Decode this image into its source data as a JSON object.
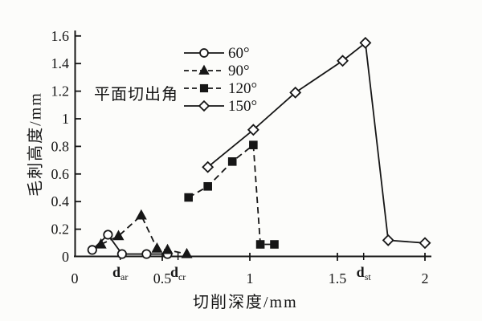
{
  "figure": {
    "background": "#fcfcfa",
    "ink": "#161616"
  },
  "chart_data": {
    "type": "line",
    "title": "",
    "xlabel": "切削深度/mm",
    "ylabel": "毛刺高度/mm",
    "xlim": [
      0,
      2.04
    ],
    "ylim": [
      0,
      1.6
    ],
    "grid": false,
    "legend": {
      "title": "平面切出角",
      "position": "inside-top-left"
    },
    "x_ticks": [
      {
        "value": 0,
        "label": "0"
      },
      {
        "value": 0.5,
        "label": "0.5"
      },
      {
        "value": 1,
        "label": "1"
      },
      {
        "value": 1.5,
        "label": "1.5"
      },
      {
        "value": 2,
        "label": "2"
      }
    ],
    "x_critical_depth_labels": [
      {
        "base": "d",
        "sub": "ar",
        "value": 0.26
      },
      {
        "base": "d",
        "sub": "cr",
        "value": 0.59
      },
      {
        "base": "d",
        "sub": "st",
        "value": 1.65
      }
    ],
    "y_ticks": [
      {
        "value": 0,
        "label": "0"
      },
      {
        "value": 0.2,
        "label": "0.2"
      },
      {
        "value": 0.4,
        "label": "0.4"
      },
      {
        "value": 0.6,
        "label": "0.6"
      },
      {
        "value": 0.8,
        "label": "0.8"
      },
      {
        "value": 1,
        "label": "1"
      },
      {
        "value": 1.2,
        "label": "1.2"
      },
      {
        "value": 1.4,
        "label": "1.4"
      },
      {
        "value": 1.6,
        "label": "1.6"
      }
    ],
    "series": [
      {
        "name": "60°",
        "line": "solid",
        "marker": "circle",
        "marker_fill": "open",
        "points": [
          [
            0.1,
            0.05
          ],
          [
            0.19,
            0.16
          ],
          [
            0.27,
            0.02
          ],
          [
            0.41,
            0.02
          ],
          [
            0.53,
            0.02
          ]
        ]
      },
      {
        "name": "90°",
        "line": "dashed",
        "marker": "triangle",
        "marker_fill": "filled",
        "points": [
          [
            0.15,
            0.09
          ],
          [
            0.25,
            0.15
          ],
          [
            0.38,
            0.3
          ],
          [
            0.47,
            0.06
          ],
          [
            0.53,
            0.05
          ],
          [
            0.64,
            0.02
          ]
        ]
      },
      {
        "name": "120°",
        "line": "dashed",
        "marker": "square",
        "marker_fill": "filled",
        "points": [
          [
            0.65,
            0.43
          ],
          [
            0.76,
            0.51
          ],
          [
            0.9,
            0.69
          ],
          [
            1.02,
            0.81
          ],
          [
            1.06,
            0.09
          ],
          [
            1.14,
            0.09
          ]
        ]
      },
      {
        "name": "150°",
        "line": "solid",
        "marker": "diamond",
        "marker_fill": "open",
        "points": [
          [
            0.76,
            0.65
          ],
          [
            1.02,
            0.92
          ],
          [
            1.26,
            1.19
          ],
          [
            1.53,
            1.42
          ],
          [
            1.66,
            1.55
          ],
          [
            1.79,
            0.12
          ],
          [
            2.0,
            0.1
          ]
        ]
      }
    ]
  }
}
